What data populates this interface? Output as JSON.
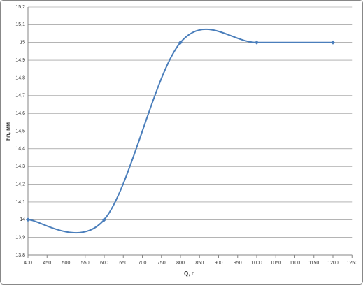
{
  "chart_data": {
    "type": "line",
    "smooth": true,
    "x_label": "Q, г",
    "y_label": "hn, мм",
    "x": [
      400,
      600,
      800,
      1000,
      1200
    ],
    "values": [
      14,
      14,
      15,
      15,
      15
    ],
    "color": "#4a7ebb",
    "xlim": [
      400,
      1250
    ],
    "xticks": [
      400,
      450,
      500,
      550,
      600,
      650,
      700,
      750,
      800,
      850,
      900,
      950,
      1000,
      1050,
      1100,
      1150,
      1200,
      1250
    ],
    "ylim": [
      13.8,
      15.2
    ],
    "yticks": [
      {
        "value": 13.8,
        "label": "13,8"
      },
      {
        "value": 13.9,
        "label": "13,9"
      },
      14,
      {
        "value": 14.1,
        "label": "14,1"
      },
      {
        "value": 14.2,
        "label": "14,2"
      },
      {
        "value": 14.3,
        "label": "14,3"
      },
      {
        "value": 14.4,
        "label": "14,4"
      },
      {
        "value": 14.5,
        "label": "14,5"
      },
      {
        "value": 14.6,
        "label": "14,6"
      },
      {
        "value": 14.7,
        "label": "14,7"
      },
      {
        "value": 14.8,
        "label": "14,8"
      },
      {
        "value": 14.9,
        "label": "14,9"
      },
      15,
      {
        "value": 15.1,
        "label": "15,1"
      },
      {
        "value": 15.2,
        "label": "15,2"
      }
    ],
    "grid": true
  }
}
